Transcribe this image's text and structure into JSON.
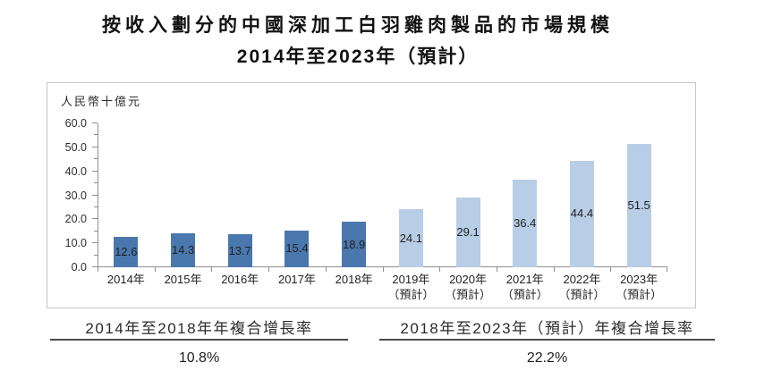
{
  "title": {
    "line1": "按收入劃分的中國深加工白羽雞肉製品的市場規模",
    "line2": "2014年至2023年（預計）"
  },
  "chart_data": {
    "type": "bar",
    "title": "按收入劃分的中國深加工白羽雞肉製品的市場規模 2014年至2023年（預計）",
    "unit_label": "人民幣十億元",
    "ylabel": "人民幣十億元",
    "xlabel": "",
    "ylim": [
      0,
      60
    ],
    "ytick_major": 10,
    "ytick_minor": 5,
    "ytick_labels": [
      "60.0",
      "50.0",
      "40.0",
      "30.0",
      "20.0",
      "10.0",
      "0.0"
    ],
    "grid": false,
    "legend_position": "none",
    "categories": [
      {
        "label": "2014年",
        "sublabel": "",
        "forecast": false
      },
      {
        "label": "2015年",
        "sublabel": "",
        "forecast": false
      },
      {
        "label": "2016年",
        "sublabel": "",
        "forecast": false
      },
      {
        "label": "2017年",
        "sublabel": "",
        "forecast": false
      },
      {
        "label": "2018年",
        "sublabel": "",
        "forecast": false
      },
      {
        "label": "2019年",
        "sublabel": "（預計）",
        "forecast": true
      },
      {
        "label": "2020年",
        "sublabel": "（預計）",
        "forecast": true
      },
      {
        "label": "2021年",
        "sublabel": "（預計）",
        "forecast": true
      },
      {
        "label": "2022年",
        "sublabel": "（預計）",
        "forecast": true
      },
      {
        "label": "2023年",
        "sublabel": "（預計）",
        "forecast": true
      }
    ],
    "values": [
      12.6,
      14.3,
      13.7,
      15.4,
      18.9,
      24.1,
      29.1,
      36.4,
      44.4,
      51.5
    ],
    "colors": {
      "historical_bar": "#4a78ae",
      "forecast_bar": "#b8cde6",
      "axis": "#8f8f8f",
      "frame_border": "#c6c6c6",
      "value_label": "#1f1f1f"
    }
  },
  "footer": {
    "left": {
      "label": "2014年至2018年年複合增長率",
      "value": "10.8%"
    },
    "right": {
      "label": "2018年至2023年（預計）年複合增長率",
      "value": "22.2%"
    }
  }
}
